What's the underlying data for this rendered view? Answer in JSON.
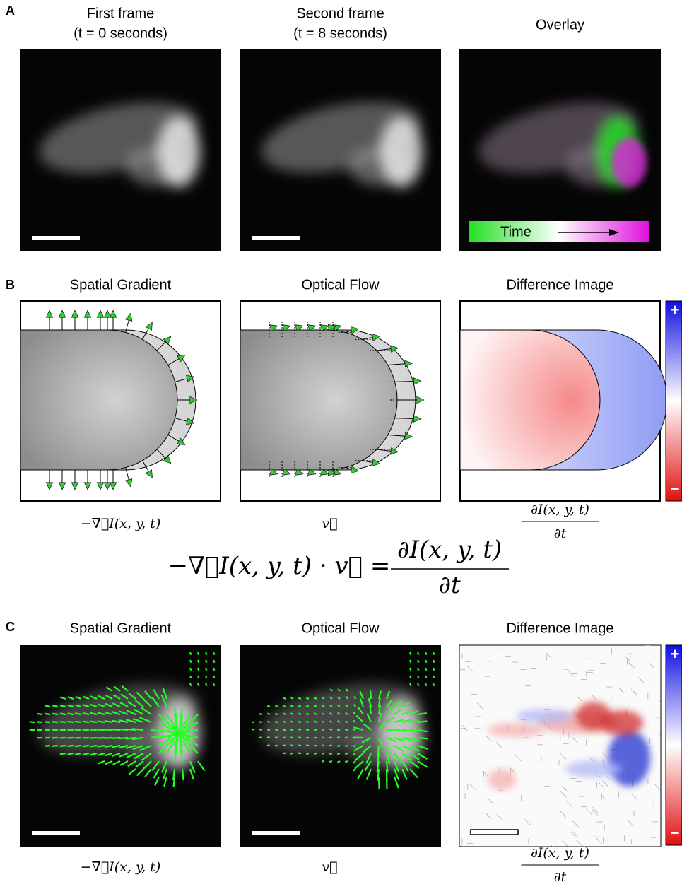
{
  "panel_a": {
    "label": "A",
    "titles": [
      [
        "First frame",
        "(t = 0 seconds)"
      ],
      [
        "Second frame",
        "(t = 8 seconds)"
      ],
      [
        "Overlay"
      ]
    ],
    "time_label": "Time"
  },
  "panel_b": {
    "label": "B",
    "titles": [
      "Spatial Gradient",
      "Optical Flow",
      "Difference Image"
    ],
    "colorbar": [
      "+",
      "−"
    ],
    "captions": {
      "gradient": "−∇⃗I(x, y, t)",
      "flow": "v⃗",
      "numerator": "∂I(x, y, t)",
      "denominator": "∂t"
    }
  },
  "equation": {
    "lhs": "−∇⃗I(x, y, t) · v⃗ =",
    "numerator": "∂I(x, y, t)",
    "denominator": "∂t"
  },
  "panel_c": {
    "label": "C",
    "titles": [
      "Spatial Gradient",
      "Optical Flow",
      "Difference Image"
    ],
    "colorbar": [
      "+",
      "−"
    ],
    "captions": {
      "gradient": "−∇⃗I(x, y, t)",
      "flow": "v⃗",
      "numerator": "∂I(x, y, t)",
      "denominator": "∂t"
    }
  }
}
